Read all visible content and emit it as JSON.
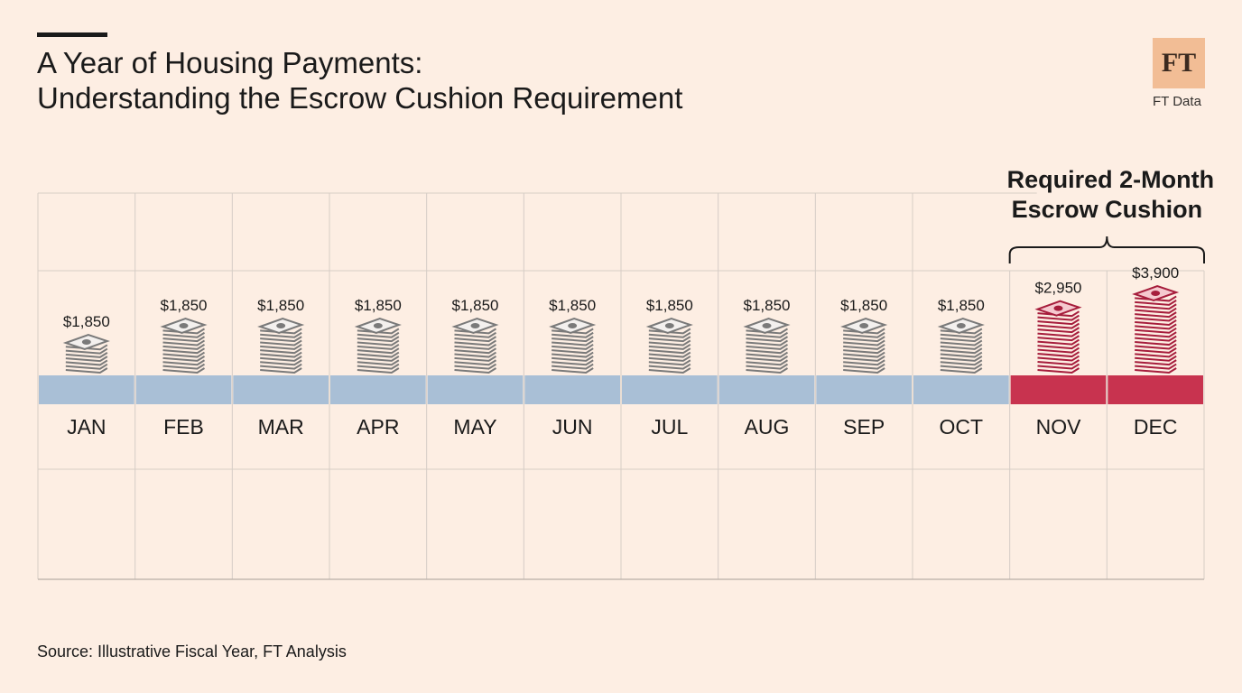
{
  "header": {
    "title_line1": "A Year of Housing Payments:",
    "title_line2": "Understanding the Escrow Cushion Requirement"
  },
  "brand": {
    "logo_text": "FT",
    "label": "FT Data"
  },
  "footer": {
    "source": "Source: Illustrative Fiscal Year, FT Analysis"
  },
  "colors": {
    "background": "#fdeee3",
    "regular_band": "#a9bfd6",
    "cushion_band": "#c8334f",
    "regular_stack": "#7a7a7a",
    "cushion_stack": "#a61d3c",
    "grid": "#d6cdc6"
  },
  "chart_data": {
    "type": "bar",
    "categories": [
      "JAN",
      "FEB",
      "MAR",
      "APR",
      "MAY",
      "JUN",
      "JUL",
      "AUG",
      "SEP",
      "OCT",
      "NOV",
      "DEC"
    ],
    "values": [
      1850,
      1850,
      1850,
      1850,
      1850,
      1850,
      1850,
      1850,
      1850,
      1850,
      2950,
      3900
    ],
    "value_labels": [
      "$1,850",
      "$1,850",
      "$1,850",
      "$1,850",
      "$1,850",
      "$1,850",
      "$1,850",
      "$1,850",
      "$1,850",
      "$1,850",
      "$2,950",
      "$3,900"
    ],
    "highlight_categories": [
      "NOV",
      "DEC"
    ],
    "annotation": {
      "line1": "Required 2-Month",
      "line2": "Escrow Cushion"
    },
    "marker": "cash-stack-icon",
    "title": "A Year of Housing Payments: Understanding the Escrow Cushion Requirement"
  }
}
